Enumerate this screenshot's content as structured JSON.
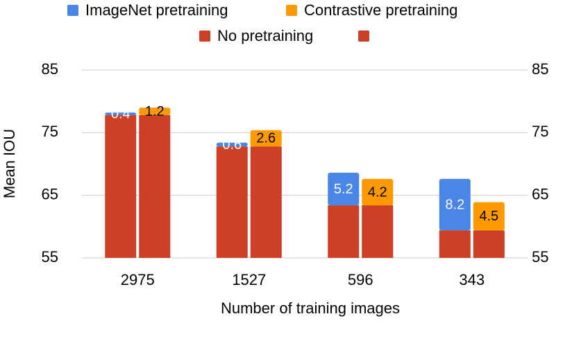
{
  "chart_data": {
    "type": "stacked-bar",
    "x_label": "Number of training images",
    "y_label": "Mean IOU",
    "categories": [
      "2975",
      "1527",
      "596",
      "343"
    ],
    "series": [
      {
        "name": "ImageNet pretraining",
        "color": "#4a86e8",
        "values": [
          0.4,
          0.6,
          5.2,
          8.2
        ]
      },
      {
        "name": "Contrastive pretraining",
        "color": "#ff9900",
        "values": [
          1.2,
          2.6,
          4.2,
          4.5
        ]
      },
      {
        "name": "No pretraining",
        "color": "#cc4125",
        "values": [
          77.8,
          72.8,
          63.4,
          59.4
        ]
      },
      {
        "name": null,
        "color": "#cc4125",
        "values": [
          77.8,
          72.8,
          63.4,
          59.4
        ]
      }
    ],
    "ylim": [
      55,
      85
    ],
    "yticks": [
      55,
      65,
      75,
      85
    ],
    "y2lim": [
      55,
      85
    ],
    "y2ticks": [
      55,
      65,
      75,
      85
    ],
    "grid": true
  }
}
